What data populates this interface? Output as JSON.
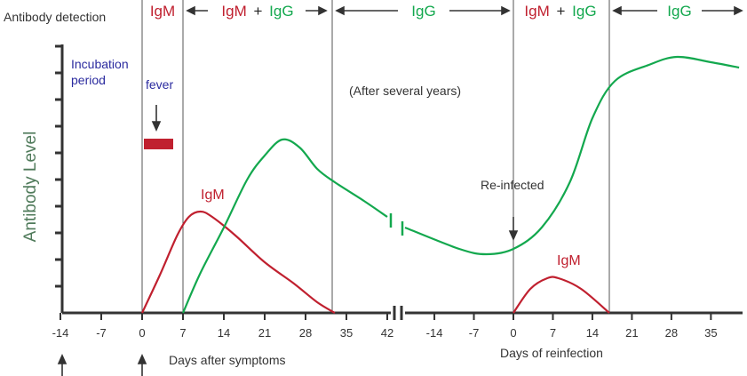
{
  "colors": {
    "igm": "#c0202f",
    "igg": "#13a84e",
    "text": "#333333",
    "label_blue": "#2b2b9f",
    "axis": "#333333",
    "divider": "#555555",
    "ylabel": "#4f7a5a"
  },
  "header": {
    "antibody_detection": "Antibody detection",
    "phase_igm": "IgM",
    "phase_mixed_igm": "IgM",
    "phase_mixed_plus": "+",
    "phase_mixed_igg": "IgG",
    "phase_igg": "IgG",
    "phase2_mixed_igm": "IgM",
    "phase2_mixed_plus": "+",
    "phase2_mixed_igg": "IgG",
    "phase2_igg": "IgG"
  },
  "annotations": {
    "incubation_line1": "Incubation",
    "incubation_line2": "period",
    "fever": "fever",
    "igm_primary": "IgM",
    "after_years": "(After several years)",
    "reinfected": "Re-infected",
    "igm_secondary": "IgM"
  },
  "axes": {
    "ylabel": "Antibody  Level",
    "xlabel_primary": "Days after symptoms",
    "xlabel_secondary": "Days of reinfection",
    "ticks_primary": [
      "-14",
      "-7",
      "0",
      "7",
      "14",
      "21",
      "28",
      "35",
      "42"
    ],
    "ticks_secondary": [
      "-14",
      "-7",
      "0",
      "7",
      "14",
      "21",
      "28",
      "35"
    ]
  },
  "chart_data": {
    "type": "line",
    "title": "",
    "ylabel": "Antibody  Level",
    "x_axes": [
      {
        "label": "Days after symptoms",
        "ticks": [
          -14,
          -7,
          0,
          7,
          14,
          21,
          28,
          35,
          42
        ]
      },
      {
        "label": "Days of reinfection",
        "ticks": [
          -14,
          -7,
          0,
          7,
          14,
          21,
          28,
          35
        ]
      }
    ],
    "y_scale": "relative (no numeric labels), 0 to 10 tick units",
    "phases_primary": [
      {
        "label": "IgM",
        "from_day": 0,
        "to_day": 7
      },
      {
        "label": "IgM + IgG",
        "from_day": 7,
        "to_day": 33
      },
      {
        "label": "IgG",
        "from_day": 33,
        "to_day_reinfection": 0
      }
    ],
    "phases_reinfection": [
      {
        "label": "IgM + IgG",
        "from_day": 0,
        "to_day": 17
      },
      {
        "label": "IgG",
        "from_day": 17,
        "to_day": 40
      }
    ],
    "fever": {
      "from_day": 0,
      "to_day": 5
    },
    "series": [
      {
        "name": "IgM",
        "segment": "primary infection",
        "points": [
          [
            0,
            0
          ],
          [
            3,
            1.4
          ],
          [
            6,
            2.9
          ],
          [
            8,
            3.6
          ],
          [
            10,
            3.8
          ],
          [
            12,
            3.6
          ],
          [
            16,
            2.9
          ],
          [
            21,
            1.9
          ],
          [
            26,
            1.1
          ],
          [
            30,
            0.4
          ],
          [
            33,
            0
          ]
        ]
      },
      {
        "name": "IgG",
        "segment": "primary infection",
        "points": [
          [
            7,
            0
          ],
          [
            10,
            1.5
          ],
          [
            14,
            3.2
          ],
          [
            18,
            5.0
          ],
          [
            21,
            5.9
          ],
          [
            24,
            6.5
          ],
          [
            27,
            6.2
          ],
          [
            30,
            5.4
          ],
          [
            33,
            4.9
          ],
          [
            38,
            4.2
          ],
          [
            42,
            3.6
          ]
        ]
      },
      {
        "name": "IgG",
        "segment": "after several years → reinfection",
        "points": [
          [
            -14,
            3.2
          ],
          [
            -7,
            2.4
          ],
          [
            -3.5,
            2.2
          ],
          [
            0,
            2.4
          ],
          [
            5,
            3.2
          ],
          [
            10,
            4.9
          ],
          [
            14,
            7.3
          ],
          [
            18,
            8.7
          ],
          [
            24,
            9.3
          ],
          [
            29,
            9.6
          ],
          [
            35,
            9.4
          ],
          [
            40,
            9.2
          ]
        ]
      },
      {
        "name": "IgM",
        "segment": "reinfection",
        "points": [
          [
            0,
            0
          ],
          [
            3,
            0.9
          ],
          [
            6,
            1.3
          ],
          [
            8,
            1.3
          ],
          [
            12,
            0.9
          ],
          [
            17,
            0
          ]
        ]
      }
    ]
  }
}
